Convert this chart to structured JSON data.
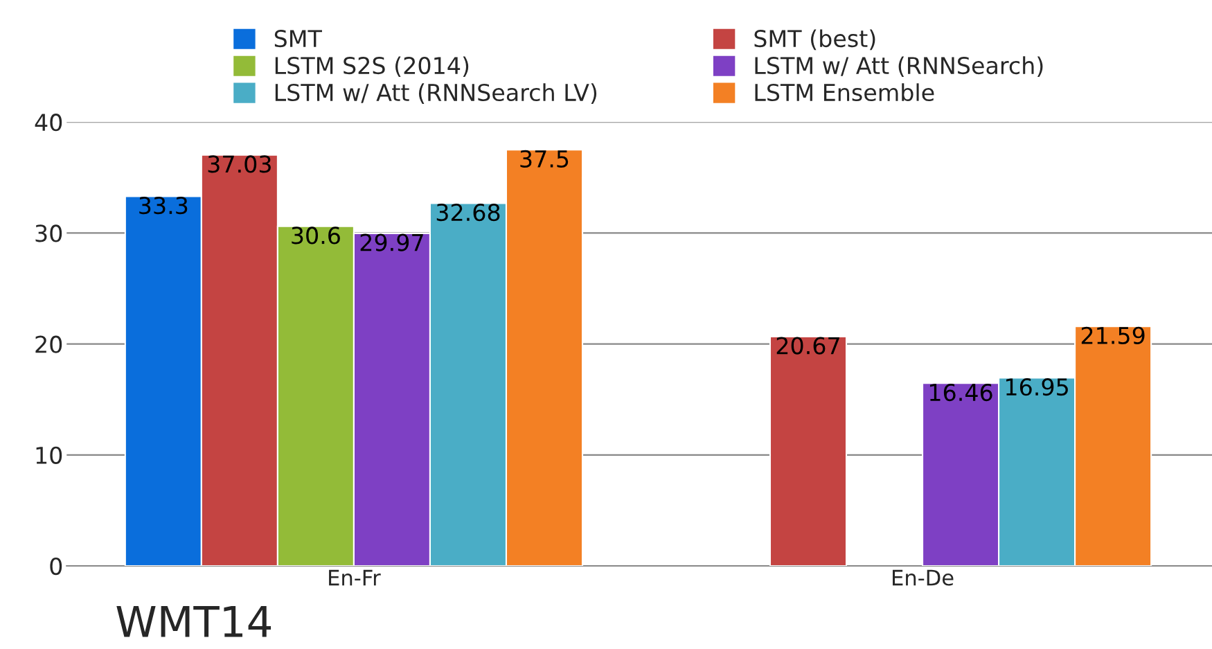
{
  "chart_data": {
    "type": "bar",
    "categories": [
      "En-Fr",
      "En-De"
    ],
    "series": [
      {
        "name": "SMT",
        "color": "#0a6edc",
        "values": [
          33.3,
          null
        ]
      },
      {
        "name": "SMT (best)",
        "color": "#c44442",
        "values": [
          37.03,
          20.67
        ]
      },
      {
        "name": "LSTM S2S (2014)",
        "color": "#93bb38",
        "values": [
          30.6,
          null
        ]
      },
      {
        "name": "LSTM w/ Att (RNNSearch)",
        "color": "#7e40c4",
        "values": [
          29.97,
          16.46
        ]
      },
      {
        "name": "LSTM w/ Att (RNNSearch LV)",
        "color": "#4aadc6",
        "values": [
          32.68,
          16.95
        ]
      },
      {
        "name": "LSTM Ensemble",
        "color": "#f38024",
        "values": [
          37.5,
          21.59
        ]
      }
    ],
    "ylim": [
      0,
      40
    ],
    "yticks": [
      0,
      10,
      20,
      30,
      40
    ],
    "grid": "y",
    "legend": "top",
    "data_labels": true,
    "annotations": [
      "WMT14"
    ]
  }
}
